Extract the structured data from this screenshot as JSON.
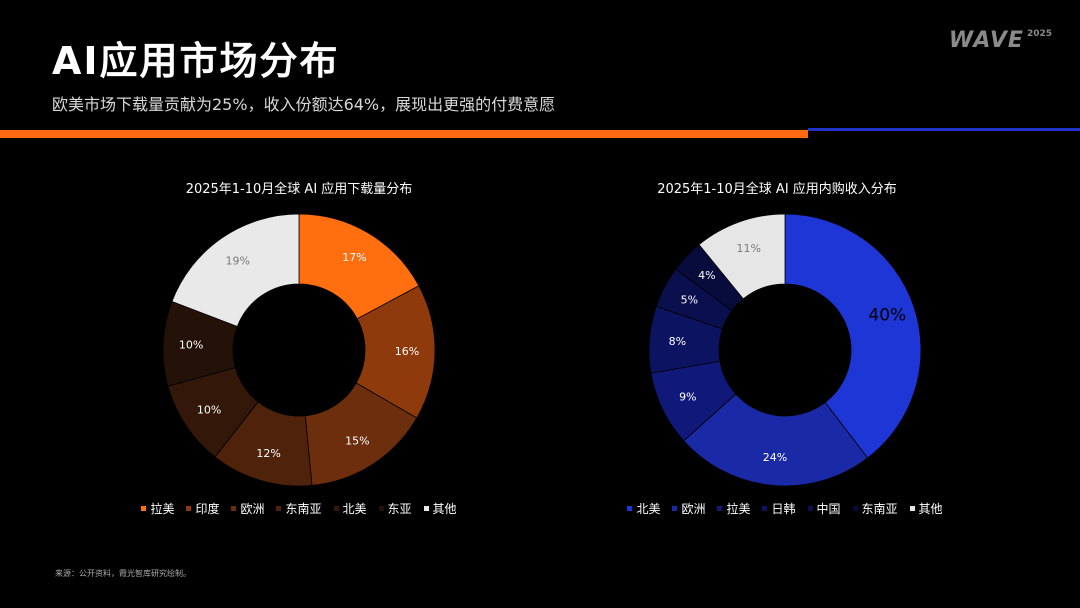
{
  "header": {
    "title": "AI应用市场分布",
    "subtitle": "欧美市场下载量贡献为25%，收入份额达64%，展现出更强的付费意愿",
    "logo_text": "WAVE",
    "logo_year": "2025"
  },
  "colors": {
    "accent_orange": "#ff6a13",
    "accent_blue": "#1f33c8"
  },
  "chart_data": [
    {
      "type": "pie",
      "donut": true,
      "title": "2025年1-10月全球 AI 应用下载量分布",
      "legend_position": "bottom",
      "categories": [
        "拉美",
        "印度",
        "欧洲",
        "东南亚",
        "北美",
        "东亚",
        "其他"
      ],
      "values": [
        17,
        16,
        15,
        12,
        10,
        10,
        19
      ],
      "labels": [
        "17%",
        "16%",
        "15%",
        "12%",
        "10%",
        "10%",
        "19%"
      ],
      "colors": [
        "#ff6f0f",
        "#8e3a0c",
        "#6d2e0d",
        "#4f220b",
        "#33180a",
        "#241208",
        "#e9e9e9"
      ],
      "label_colors": [
        "#ffffff",
        "#ffffff",
        "#ffffff",
        "#ffffff",
        "#ffffff",
        "#ffffff",
        "#7a7a7a"
      ]
    },
    {
      "type": "pie",
      "donut": true,
      "title": "2025年1-10月全球 AI 应用内购收入分布",
      "legend_position": "bottom",
      "categories": [
        "北美",
        "欧洲",
        "拉美",
        "日韩",
        "中国",
        "东南亚",
        "其他"
      ],
      "values": [
        40,
        24,
        9,
        8,
        5,
        4,
        11
      ],
      "labels": [
        "40%",
        "24%",
        "9%",
        "8%",
        "5%",
        "4%",
        "11%"
      ],
      "colors": [
        "#1f36d6",
        "#1a2aa6",
        "#10197a",
        "#0c1462",
        "#0a104e",
        "#070c3c",
        "#e6e6e6"
      ],
      "label_colors": [
        "#000000",
        "#ffffff",
        "#ffffff",
        "#ffffff",
        "#ffffff",
        "#ffffff",
        "#7a7a7a"
      ]
    }
  ],
  "footer": {
    "source": "来源：公开资料，霞光智库研究绘制。"
  }
}
